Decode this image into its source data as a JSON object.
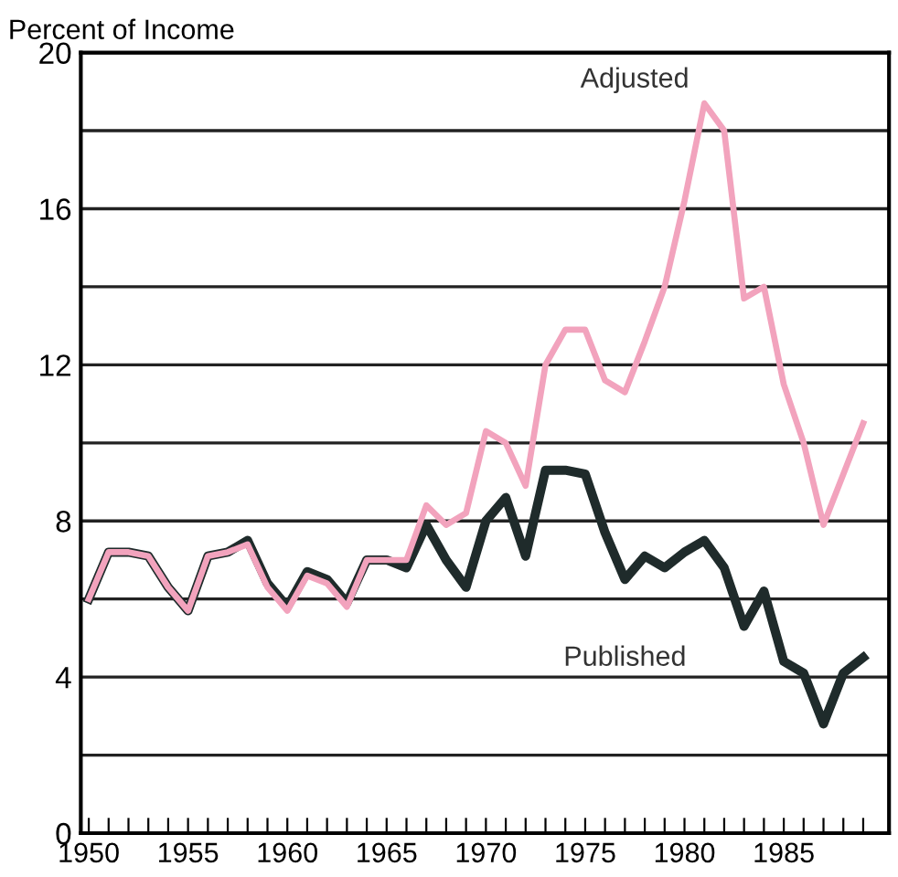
{
  "chart_data": {
    "type": "line",
    "ylabel": "Percent of Income",
    "x": [
      1950,
      1951,
      1952,
      1953,
      1954,
      1955,
      1956,
      1957,
      1958,
      1959,
      1960,
      1961,
      1962,
      1963,
      1964,
      1965,
      1966,
      1967,
      1968,
      1969,
      1970,
      1971,
      1972,
      1973,
      1974,
      1975,
      1976,
      1977,
      1978,
      1979,
      1980,
      1981,
      1982,
      1983,
      1984,
      1985,
      1986,
      1987,
      1988,
      1989
    ],
    "series": [
      {
        "name": "Published",
        "color": "#1f2b2b",
        "values": [
          6.0,
          7.2,
          7.2,
          7.1,
          6.3,
          5.7,
          7.1,
          7.2,
          7.5,
          6.4,
          5.8,
          6.7,
          6.5,
          5.9,
          7.0,
          7.0,
          6.8,
          7.9,
          7.0,
          6.3,
          8.0,
          8.6,
          7.1,
          9.3,
          9.3,
          9.2,
          7.7,
          6.5,
          7.1,
          6.8,
          7.2,
          7.5,
          6.8,
          5.3,
          6.2,
          4.4,
          4.1,
          2.8,
          4.1,
          4.5
        ]
      },
      {
        "name": "Adjusted",
        "color": "#f2a3bd",
        "values": [
          6.0,
          7.2,
          7.2,
          7.1,
          6.3,
          5.7,
          7.1,
          7.2,
          7.4,
          6.3,
          5.7,
          6.6,
          6.4,
          5.8,
          7.0,
          7.0,
          7.0,
          8.4,
          7.9,
          8.2,
          10.3,
          10.0,
          8.9,
          12.0,
          12.9,
          12.9,
          11.6,
          11.3,
          12.6,
          14.0,
          16.2,
          18.7,
          18.0,
          13.7,
          14.0,
          11.5,
          10.0,
          7.9,
          9.2,
          10.5
        ]
      }
    ],
    "xlim": [
      1949.6,
      1990.3
    ],
    "ylim": [
      0,
      20
    ],
    "xticks": [
      1950,
      {
        "value": 1951,
        "label": null
      },
      {
        "value": 1952,
        "label": null
      },
      {
        "value": 1953,
        "label": null
      },
      {
        "value": 1954,
        "label": null
      },
      1955,
      {
        "value": 1956,
        "label": null
      },
      {
        "value": 1957,
        "label": null
      },
      {
        "value": 1958,
        "label": null
      },
      {
        "value": 1959,
        "label": null
      },
      1960,
      {
        "value": 1961,
        "label": null
      },
      {
        "value": 1962,
        "label": null
      },
      {
        "value": 1963,
        "label": null
      },
      {
        "value": 1964,
        "label": null
      },
      1965,
      {
        "value": 1966,
        "label": null
      },
      {
        "value": 1967,
        "label": null
      },
      {
        "value": 1968,
        "label": null
      },
      {
        "value": 1969,
        "label": null
      },
      1970,
      {
        "value": 1971,
        "label": null
      },
      {
        "value": 1972,
        "label": null
      },
      {
        "value": 1973,
        "label": null
      },
      {
        "value": 1974,
        "label": null
      },
      1975,
      {
        "value": 1976,
        "label": null
      },
      {
        "value": 1977,
        "label": null
      },
      {
        "value": 1978,
        "label": null
      },
      {
        "value": 1979,
        "label": null
      },
      1980,
      {
        "value": 1981,
        "label": null
      },
      {
        "value": 1982,
        "label": null
      },
      {
        "value": 1983,
        "label": null
      },
      {
        "value": 1984,
        "label": null
      },
      1985,
      {
        "value": 1986,
        "label": null
      },
      {
        "value": 1987,
        "label": null
      },
      {
        "value": 1988,
        "label": null
      },
      {
        "value": 1989,
        "label": null
      }
    ],
    "yticks": [
      0,
      {
        "value": 2,
        "label": null
      },
      4,
      {
        "value": 6,
        "label": null
      },
      8,
      {
        "value": 10,
        "label": null
      },
      12,
      {
        "value": 14,
        "label": null
      },
      16,
      {
        "value": 18,
        "label": null
      },
      20
    ],
    "grid": "y",
    "legend": false,
    "line_style": "solid",
    "marker": "none"
  }
}
